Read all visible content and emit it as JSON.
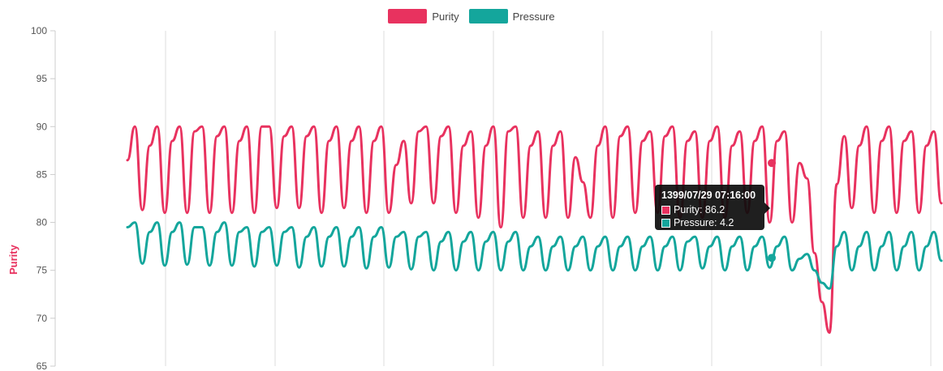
{
  "chart_data": {
    "type": "line",
    "title": "",
    "ylabel": "Purity",
    "ylim": [
      65,
      100
    ],
    "yticks": [
      100,
      95,
      90,
      85,
      80,
      75,
      70,
      65
    ],
    "grid_x": true,
    "legend": "top-center",
    "series": [
      {
        "name": "Purity",
        "color": "#e8325f",
        "y": [
          86.5,
          90.0,
          81.3,
          88.0,
          90.0,
          81.0,
          88.5,
          90.0,
          81.0,
          89.5,
          90.0,
          81.0,
          89.0,
          90.0,
          81.0,
          88.5,
          90.0,
          81.0,
          90.0,
          90.0,
          81.5,
          89.0,
          90.0,
          81.5,
          89.0,
          90.0,
          81.0,
          88.5,
          90.0,
          81.5,
          88.5,
          90.0,
          81.0,
          88.5,
          90.0,
          81.0,
          86.0,
          88.5,
          82.0,
          89.5,
          90.0,
          82.0,
          89.0,
          90.0,
          81.0,
          88.0,
          89.5,
          80.5,
          88.0,
          90.0,
          79.5,
          89.5,
          90.0,
          80.5,
          88.0,
          89.5,
          80.5,
          88.0,
          89.5,
          80.5,
          86.8,
          84.2,
          80.5,
          88.0,
          90.0,
          80.5,
          89.0,
          90.0,
          81.0,
          88.5,
          89.5,
          81.0,
          89.0,
          90.0,
          80.5,
          88.5,
          89.5,
          80.5,
          88.5,
          90.0,
          80.5,
          88.0,
          89.5,
          81.0,
          88.5,
          90.0,
          80.0,
          88.5,
          89.5,
          80.0,
          86.2,
          84.6,
          76.8,
          71.7,
          68.5,
          84.0,
          89.0,
          81.5,
          88.0,
          90.0,
          81.0,
          88.5,
          90.0,
          81.0,
          88.5,
          89.5,
          81.0,
          88.0,
          89.5,
          82.0
        ]
      },
      {
        "name": "Pressure",
        "color": "#14a69c",
        "y": [
          79.5,
          80.0,
          75.7,
          79.0,
          80.0,
          75.5,
          79.0,
          80.0,
          75.6,
          79.5,
          79.5,
          75.5,
          79.0,
          80.0,
          75.5,
          79.0,
          79.5,
          75.4,
          79.0,
          79.5,
          75.5,
          79.0,
          79.5,
          75.3,
          78.5,
          79.5,
          75.4,
          78.5,
          79.5,
          75.4,
          78.5,
          79.5,
          75.2,
          78.5,
          79.5,
          75.3,
          78.5,
          79.0,
          75.1,
          78.5,
          79.0,
          75.0,
          78.0,
          79.0,
          75.0,
          78.0,
          79.0,
          75.0,
          78.0,
          79.0,
          75.0,
          78.0,
          79.0,
          75.0,
          77.5,
          78.5,
          75.0,
          77.5,
          78.5,
          75.0,
          77.5,
          78.5,
          75.0,
          77.5,
          78.5,
          75.0,
          77.5,
          78.5,
          75.0,
          77.5,
          78.5,
          75.0,
          77.5,
          78.5,
          75.0,
          78.0,
          78.5,
          75.2,
          77.5,
          78.5,
          75.0,
          77.5,
          78.5,
          75.0,
          77.5,
          78.5,
          75.3,
          77.5,
          78.5,
          75.0,
          76.2,
          76.7,
          75.0,
          73.7,
          73.1,
          77.5,
          79.0,
          75.0,
          77.5,
          79.0,
          75.0,
          77.5,
          79.0,
          75.0,
          77.5,
          79.0,
          75.0,
          77.5,
          79.0,
          76.0
        ]
      }
    ],
    "tooltip": {
      "title": "1399/07/29 07:16:00",
      "rows": [
        {
          "label": "Purity: 86.2",
          "color": "#e8325f"
        },
        {
          "label": "Pressure: 4.2",
          "color": "#14a69c"
        }
      ]
    }
  }
}
